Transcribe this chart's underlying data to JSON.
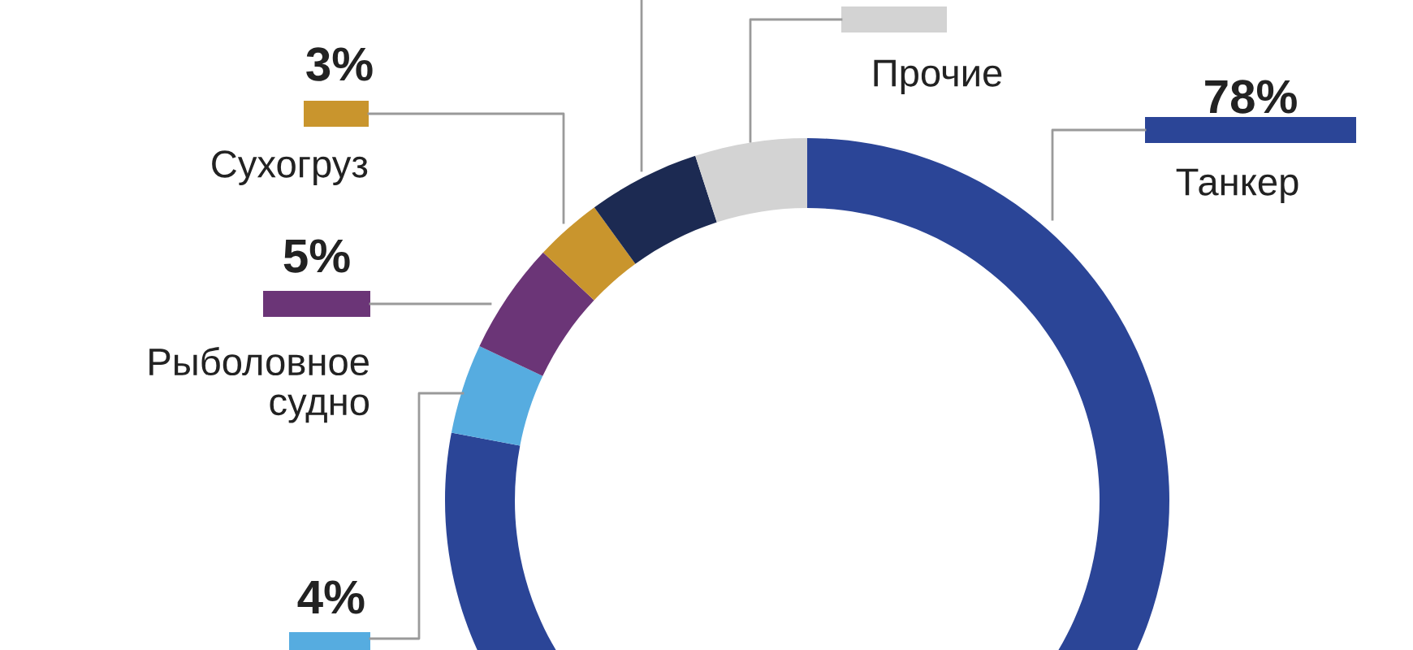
{
  "chart_data": {
    "type": "donut",
    "categories": [
      "Танкер",
      null,
      "Рыболовное\nсудно",
      "Сухогруз",
      null,
      "Прочие"
    ],
    "values": [
      78,
      4,
      5,
      3,
      5,
      5
    ],
    "colors": [
      "#2b4597",
      "#56ace0",
      "#6b3577",
      "#c9952d",
      "#1c2a52",
      "#d3d3d3"
    ],
    "value_labels": [
      "78%",
      "4%",
      "5%",
      "3%",
      null,
      null
    ],
    "legend": "left"
  }
}
